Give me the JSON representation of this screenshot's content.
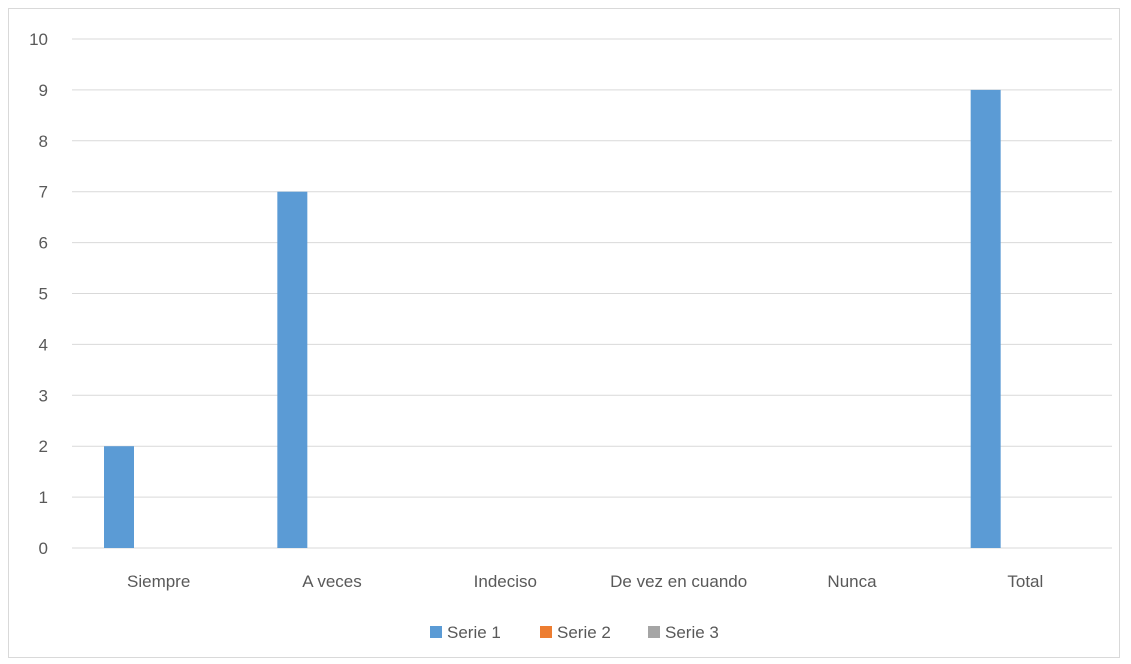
{
  "chart_data": {
    "type": "bar",
    "categories": [
      "Siempre",
      "A veces",
      "Indeciso",
      "De vez en cuando",
      "Nunca",
      "Total"
    ],
    "series": [
      {
        "name": "Serie 1",
        "color": "#5b9bd5",
        "values": [
          2,
          7,
          0,
          0,
          0,
          9
        ]
      },
      {
        "name": "Serie 2",
        "color": "#ed7d31",
        "values": [
          0,
          0,
          0,
          0,
          0,
          0
        ]
      },
      {
        "name": "Serie 3",
        "color": "#a5a5a5",
        "values": [
          0,
          0,
          0,
          0,
          0,
          0
        ]
      }
    ],
    "ylim": [
      0,
      10
    ],
    "yticks": [
      0,
      1,
      2,
      3,
      4,
      5,
      6,
      7,
      8,
      9,
      10
    ],
    "grid": true,
    "legend": "bottom",
    "title": "",
    "xlabel": "",
    "ylabel": ""
  }
}
